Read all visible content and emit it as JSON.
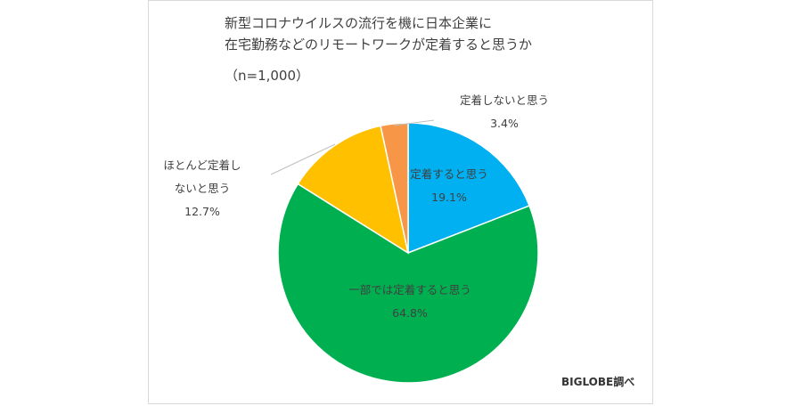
{
  "chart_data": {
    "type": "pie",
    "title_lines": [
      "新型コロナウイルスの流行を機に日本企業に",
      "在宅勤務などのリモートワークが定着すると思うか"
    ],
    "subtitle": "（n=1,000）",
    "slices": [
      {
        "label": "定着すると思う",
        "label_lines": [
          "定着すると思う"
        ],
        "value": 19.1,
        "value_label": "19.1%",
        "color": "#00b0f0"
      },
      {
        "label": "一部では定着すると思う",
        "label_lines": [
          "一部では定着すると思う"
        ],
        "value": 64.8,
        "value_label": "64.8%",
        "color": "#00b050"
      },
      {
        "label": "ほとんど定着しないと思う",
        "label_lines": [
          "ほとんど定着し",
          "ないと思う"
        ],
        "value": 12.7,
        "value_label": "12.7%",
        "color": "#ffc000"
      },
      {
        "label": "定着しないと思う",
        "label_lines": [
          "定着しないと思う"
        ],
        "value": 3.4,
        "value_label": "3.4%",
        "color": "#f79646"
      }
    ],
    "start": "12 o'clock",
    "direction": "clockwise"
  },
  "credit": "BIGLOBE調べ"
}
